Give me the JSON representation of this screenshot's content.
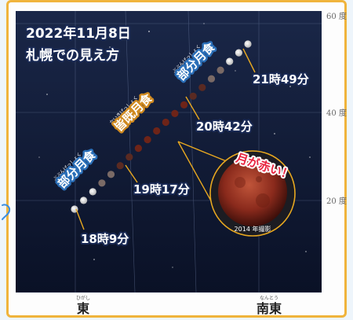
{
  "title": {
    "date_line": "2022年11月8日",
    "subtitle": "札幌での見え方"
  },
  "phases": {
    "partial_1": "部分月食",
    "total": "皆既月食",
    "partial_2": "部分月食",
    "ruby_partial": "ぶぶんげっしょく",
    "ruby_total": "かいきげっしょく"
  },
  "times": {
    "t1": "18時9分",
    "t2": "19時17分",
    "t3": "20時42分",
    "t4": "21時49分"
  },
  "inset": {
    "caption": "2014 年撮影",
    "callout": "月が赤い！"
  },
  "altitude_labels": [
    "60 度",
    "40 度",
    "20 度"
  ],
  "directions": {
    "east": "東",
    "east_ruby": "ひがし",
    "southeast": "南東",
    "southeast_ruby": "なんとう"
  },
  "colors": {
    "sky_top": "#152140",
    "sky_bottom": "#0a1024",
    "frame": "#f0b43c",
    "leader_line": "#e8a820",
    "eclipsed_moon": "#8a2a1c"
  }
}
